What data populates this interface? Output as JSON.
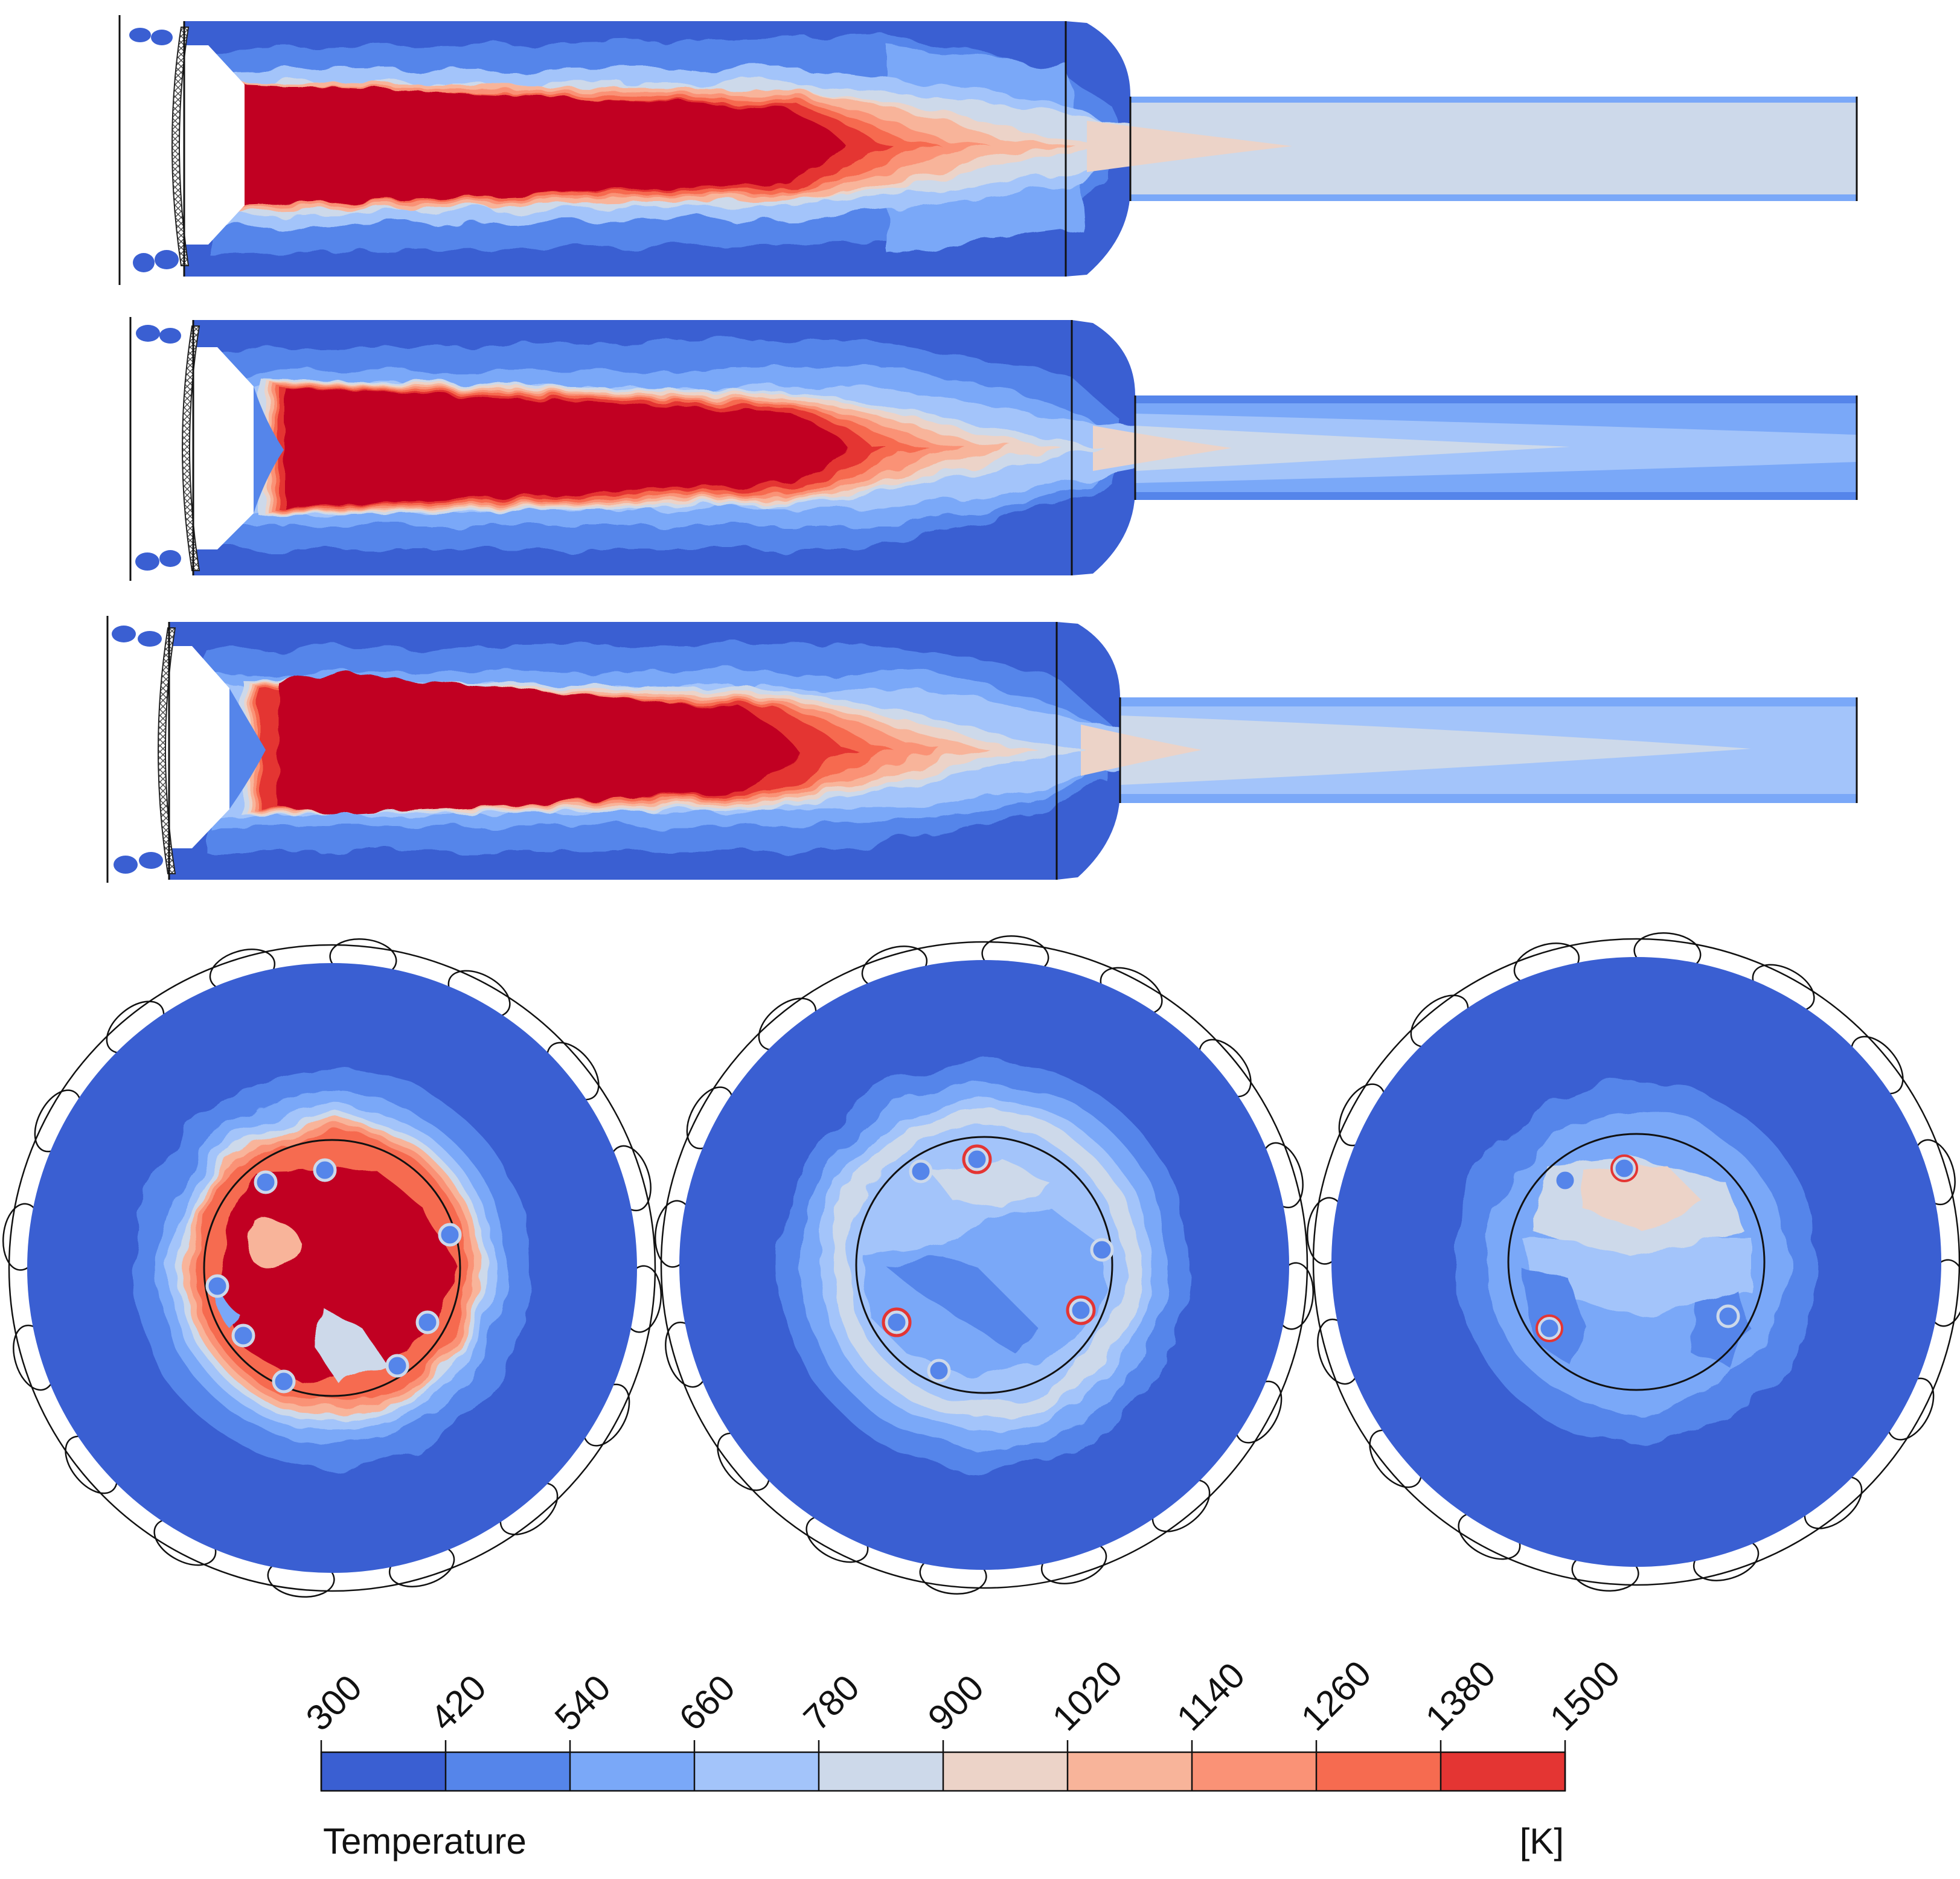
{
  "colorbar": {
    "title": "Temperature",
    "unit": "[K]",
    "ticks": [
      "300",
      "420",
      "540",
      "660",
      "780",
      "900",
      "1020",
      "1140",
      "1260",
      "1380",
      "1500"
    ],
    "range": [
      300,
      1500
    ],
    "colors": [
      "#3a5fd2",
      "#5585ea",
      "#7aa8f8",
      "#a3c4fa",
      "#cdd9ea",
      "#ecd3c8",
      "#f8b49a",
      "#fa9276",
      "#f66b50",
      "#e43533",
      "#c10020"
    ]
  },
  "panels": {
    "longitudinal_sections": 3,
    "cross_sections": 3
  }
}
